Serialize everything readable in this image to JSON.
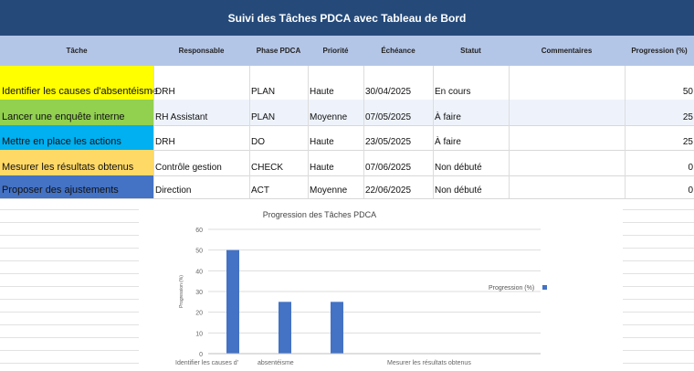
{
  "title": "Suivi des Tâches PDCA avec Tableau de Bord",
  "columns": [
    "Tâche",
    "Responsable",
    "Phase PDCA",
    "Priorité",
    "Échéance",
    "Statut",
    "Commentaires",
    "Progression (%)"
  ],
  "rows": [
    {
      "task": "Identifier les causes d'absentéisme",
      "owner": "DRH",
      "phase": "PLAN",
      "priority": "Haute",
      "due": "30/04/2025",
      "status": "En cours",
      "comment": "",
      "progress": "50",
      "color": "#ffff00"
    },
    {
      "task": "Lancer une enquête interne",
      "owner": "RH Assistant",
      "phase": "PLAN",
      "priority": "Moyenne",
      "due": "07/05/2025",
      "status": "À faire",
      "comment": "",
      "progress": "25",
      "color": "#92d050"
    },
    {
      "task": "Mettre en place les actions",
      "owner": "DRH",
      "phase": "DO",
      "priority": "Haute",
      "due": "23/05/2025",
      "status": "À faire",
      "comment": "",
      "progress": "25",
      "color": "#00b0f0"
    },
    {
      "task": "Mesurer les résultats obtenus",
      "owner": "Contrôle gestion",
      "phase": "CHECK",
      "priority": "Haute",
      "due": "07/06/2025",
      "status": "Non débuté",
      "comment": "",
      "progress": "0",
      "color": "#ffd966"
    },
    {
      "task": "Proposer des ajustements",
      "owner": "Direction",
      "phase": "ACT",
      "priority": "Moyenne",
      "due": "22/06/2025",
      "status": "Non débuté",
      "comment": "",
      "progress": "0",
      "color": "#4472c4"
    }
  ],
  "chart_data": {
    "type": "bar",
    "title": "Progression des Tâches PDCA",
    "ylabel": "Progression (%)",
    "categories": [
      "Identifier les causes d'absentéisme",
      "Lancer une enquête interne",
      "Mettre en place les actions",
      "Mesurer les résultats obtenus",
      "Proposer des ajustements"
    ],
    "x_tick_labels": [
      "Identifier les causes d'",
      "absentéisme",
      "Mesurer les résultats obtenus"
    ],
    "series": [
      {
        "name": "Progression (%)",
        "values": [
          50,
          25,
          25,
          0,
          0
        ]
      }
    ],
    "ylim": [
      0,
      60
    ],
    "yticks": [
      0,
      10,
      20,
      30,
      40,
      50,
      60
    ],
    "legend": "right",
    "bar_color": "#4472c4"
  }
}
